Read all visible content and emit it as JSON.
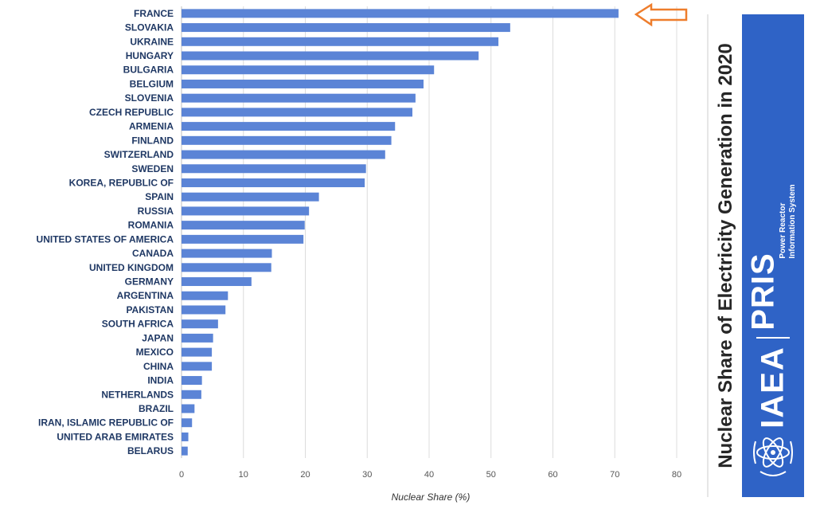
{
  "chart_data": {
    "type": "bar",
    "orientation": "horizontal",
    "title": "Nuclear Share of Electricity Generation in 2020",
    "xlabel": "Nuclear Share (%)",
    "ylabel": "",
    "xlim": [
      0,
      80
    ],
    "xticks": [
      0,
      10,
      20,
      30,
      40,
      50,
      60,
      70,
      80
    ],
    "grid": true,
    "bar_color": "#5b84d6",
    "highlight": {
      "category": "FRANCE",
      "marker": "arrow-left-icon",
      "color": "#ee7d2c"
    },
    "categories": [
      "FRANCE",
      "SLOVAKIA",
      "UKRAINE",
      "HUNGARY",
      "BULGARIA",
      "BELGIUM",
      "SLOVENIA",
      "CZECH REPUBLIC",
      "ARMENIA",
      "FINLAND",
      "SWITZERLAND",
      "SWEDEN",
      "KOREA, REPUBLIC OF",
      "SPAIN",
      "RUSSIA",
      "ROMANIA",
      "UNITED STATES OF AMERICA",
      "CANADA",
      "UNITED KINGDOM",
      "GERMANY",
      "ARGENTINA",
      "PAKISTAN",
      "SOUTH AFRICA",
      "JAPAN",
      "MEXICO",
      "CHINA",
      "INDIA",
      "NETHERLANDS",
      "BRAZIL",
      "IRAN, ISLAMIC REPUBLIC OF",
      "UNITED ARAB EMIRATES",
      "BELARUS"
    ],
    "values": [
      70.6,
      53.1,
      51.2,
      48.0,
      40.8,
      39.1,
      37.8,
      37.3,
      34.5,
      33.9,
      32.9,
      29.8,
      29.6,
      22.2,
      20.6,
      19.9,
      19.7,
      14.6,
      14.5,
      11.3,
      7.5,
      7.1,
      5.9,
      5.1,
      4.9,
      4.9,
      3.3,
      3.2,
      2.1,
      1.7,
      1.1,
      1.0
    ]
  },
  "branding": {
    "org": "IAEA",
    "system": "PRIS",
    "system_full_line1": "Power Reactor",
    "system_full_line2": "Information System",
    "logo_icon": "iaea-atom-logo-icon",
    "panel_color": "#2f63c6"
  }
}
